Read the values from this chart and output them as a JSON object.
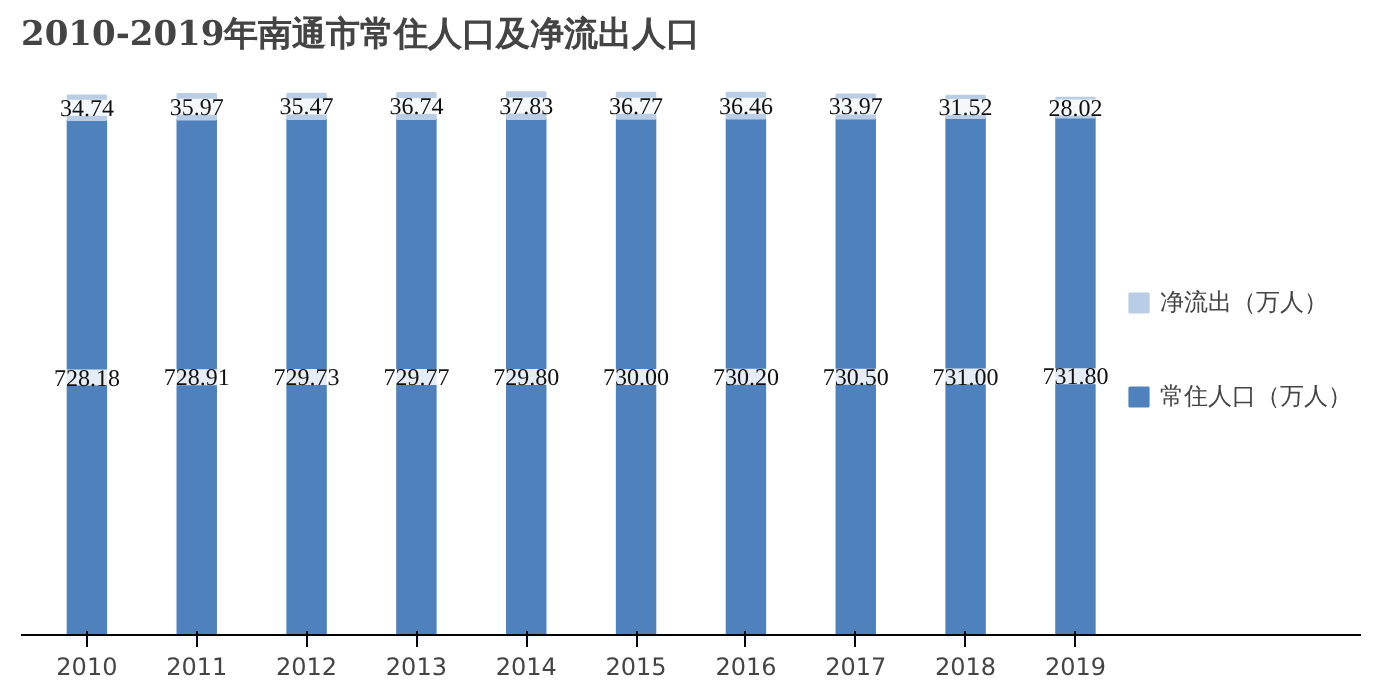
{
  "chart_data": {
    "type": "bar",
    "title": "2010-2019年南通市常住人口及净流出人口",
    "stacked": true,
    "categories": [
      "2010",
      "2011",
      "2012",
      "2013",
      "2014",
      "2015",
      "2016",
      "2017",
      "2018",
      "2019"
    ],
    "series": [
      {
        "name": "常住人口（万人）",
        "color": "#4f81bd",
        "values": [
          728.18,
          728.91,
          729.73,
          729.77,
          729.8,
          730.0,
          730.2,
          730.5,
          731.0,
          731.8
        ],
        "value_labels": [
          "728.18",
          "728.91",
          "729.73",
          "729.77",
          "729.80",
          "730.00",
          "730.20",
          "730.50",
          "731.00",
          "731.80"
        ]
      },
      {
        "name": "净流出（万人）",
        "color": "#b9cde5",
        "values": [
          34.74,
          35.97,
          35.47,
          36.74,
          37.83,
          36.77,
          36.46,
          33.97,
          31.52,
          28.02
        ],
        "value_labels": [
          "34.74",
          "35.97",
          "35.47",
          "36.74",
          "37.83",
          "36.77",
          "36.46",
          "33.97",
          "31.52",
          "28.02"
        ]
      }
    ],
    "legend": "right",
    "tick_labels": "x"
  }
}
